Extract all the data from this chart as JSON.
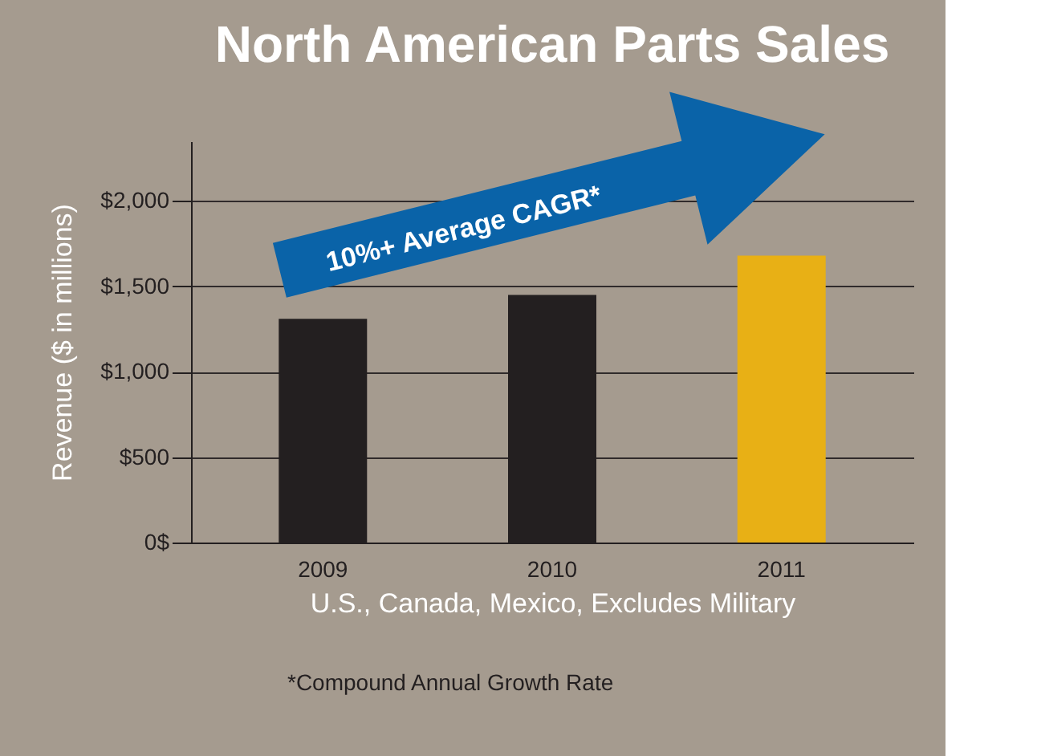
{
  "chart_data": {
    "type": "bar",
    "title": "North American Parts Sales",
    "ylabel": "Revenue ($ in millions)",
    "xlabel": "U.S., Canada, Mexico, Excludes Military",
    "categories": [
      "2009",
      "2010",
      "2011"
    ],
    "values": [
      1310,
      1450,
      1680
    ],
    "colors": [
      "#231f20",
      "#231f20",
      "#e8b015"
    ],
    "ylim": [
      0,
      2350
    ],
    "yticks": [
      {
        "value": 0,
        "label": "0$"
      },
      {
        "value": 500,
        "label": "$500"
      },
      {
        "value": 1000,
        "label": "$1,000"
      },
      {
        "value": 1500,
        "label": "$1,500"
      },
      {
        "value": 2000,
        "label": "$2,000"
      }
    ],
    "grid": "y",
    "annotations": [
      "10%+ Average CAGR*",
      "*Compound Annual Growth Rate"
    ]
  }
}
